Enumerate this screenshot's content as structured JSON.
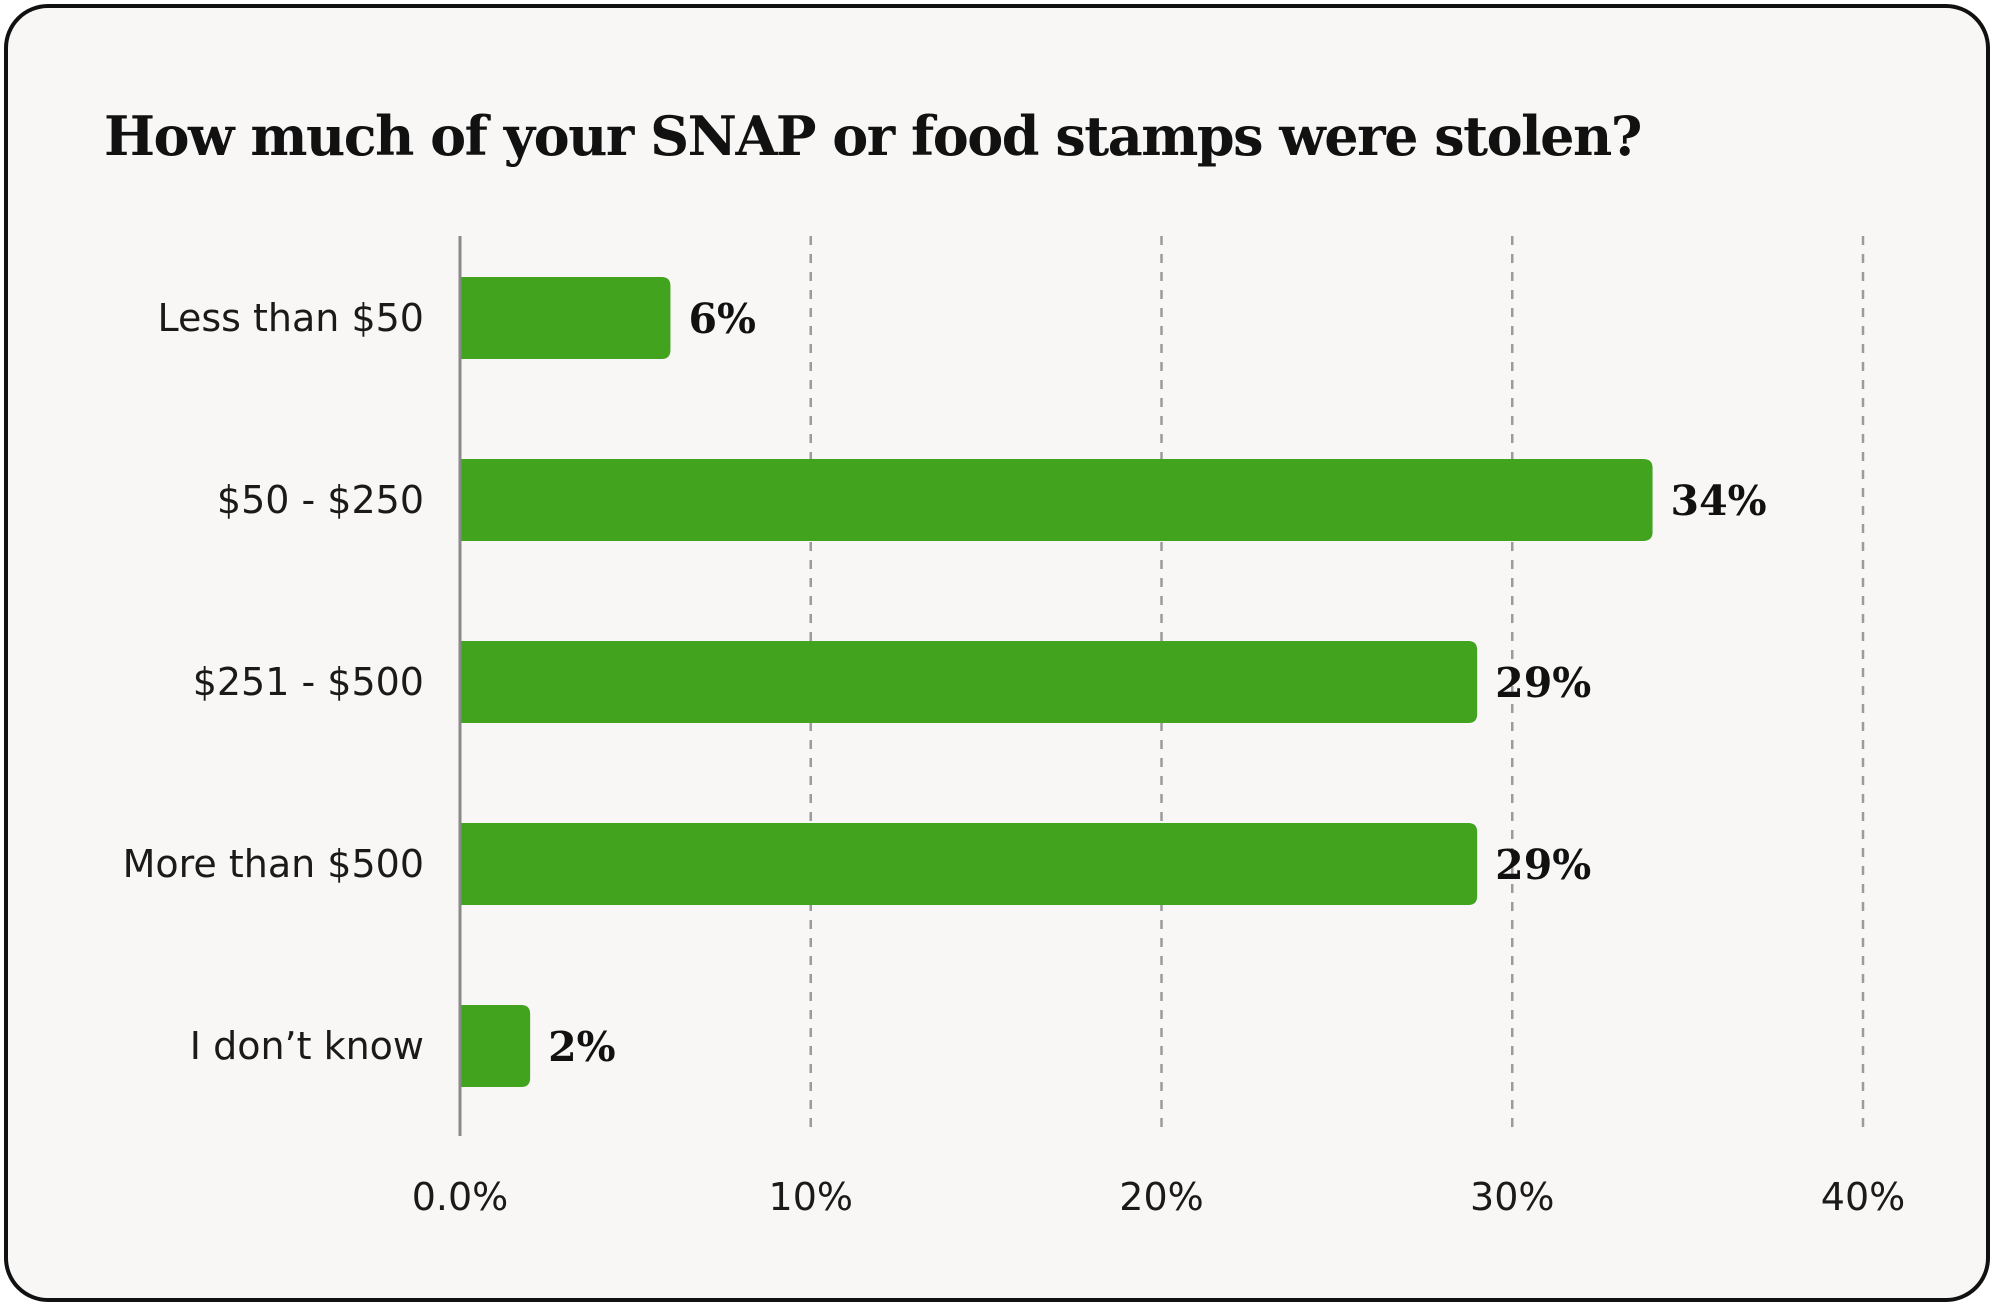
{
  "chart_data": {
    "type": "bar",
    "orientation": "horizontal",
    "title": "How much of your SNAP or food stamps were stolen?",
    "categories": [
      "Less than $50",
      "$50 - $250",
      "$251 - $500",
      "More than $500",
      "I don’t know"
    ],
    "values": [
      6,
      34,
      29,
      29,
      2
    ],
    "value_labels": [
      "6%",
      "34%",
      "29%",
      "29%",
      "2%"
    ],
    "xlim": [
      0,
      40
    ],
    "x_ticks": [
      0,
      10,
      20,
      30,
      40
    ],
    "x_tick_labels": [
      "0.0%",
      "10%",
      "20%",
      "30%",
      "40%"
    ],
    "grid": "vertical dashed",
    "legend": "none",
    "bar_color": "#42a31f"
  }
}
